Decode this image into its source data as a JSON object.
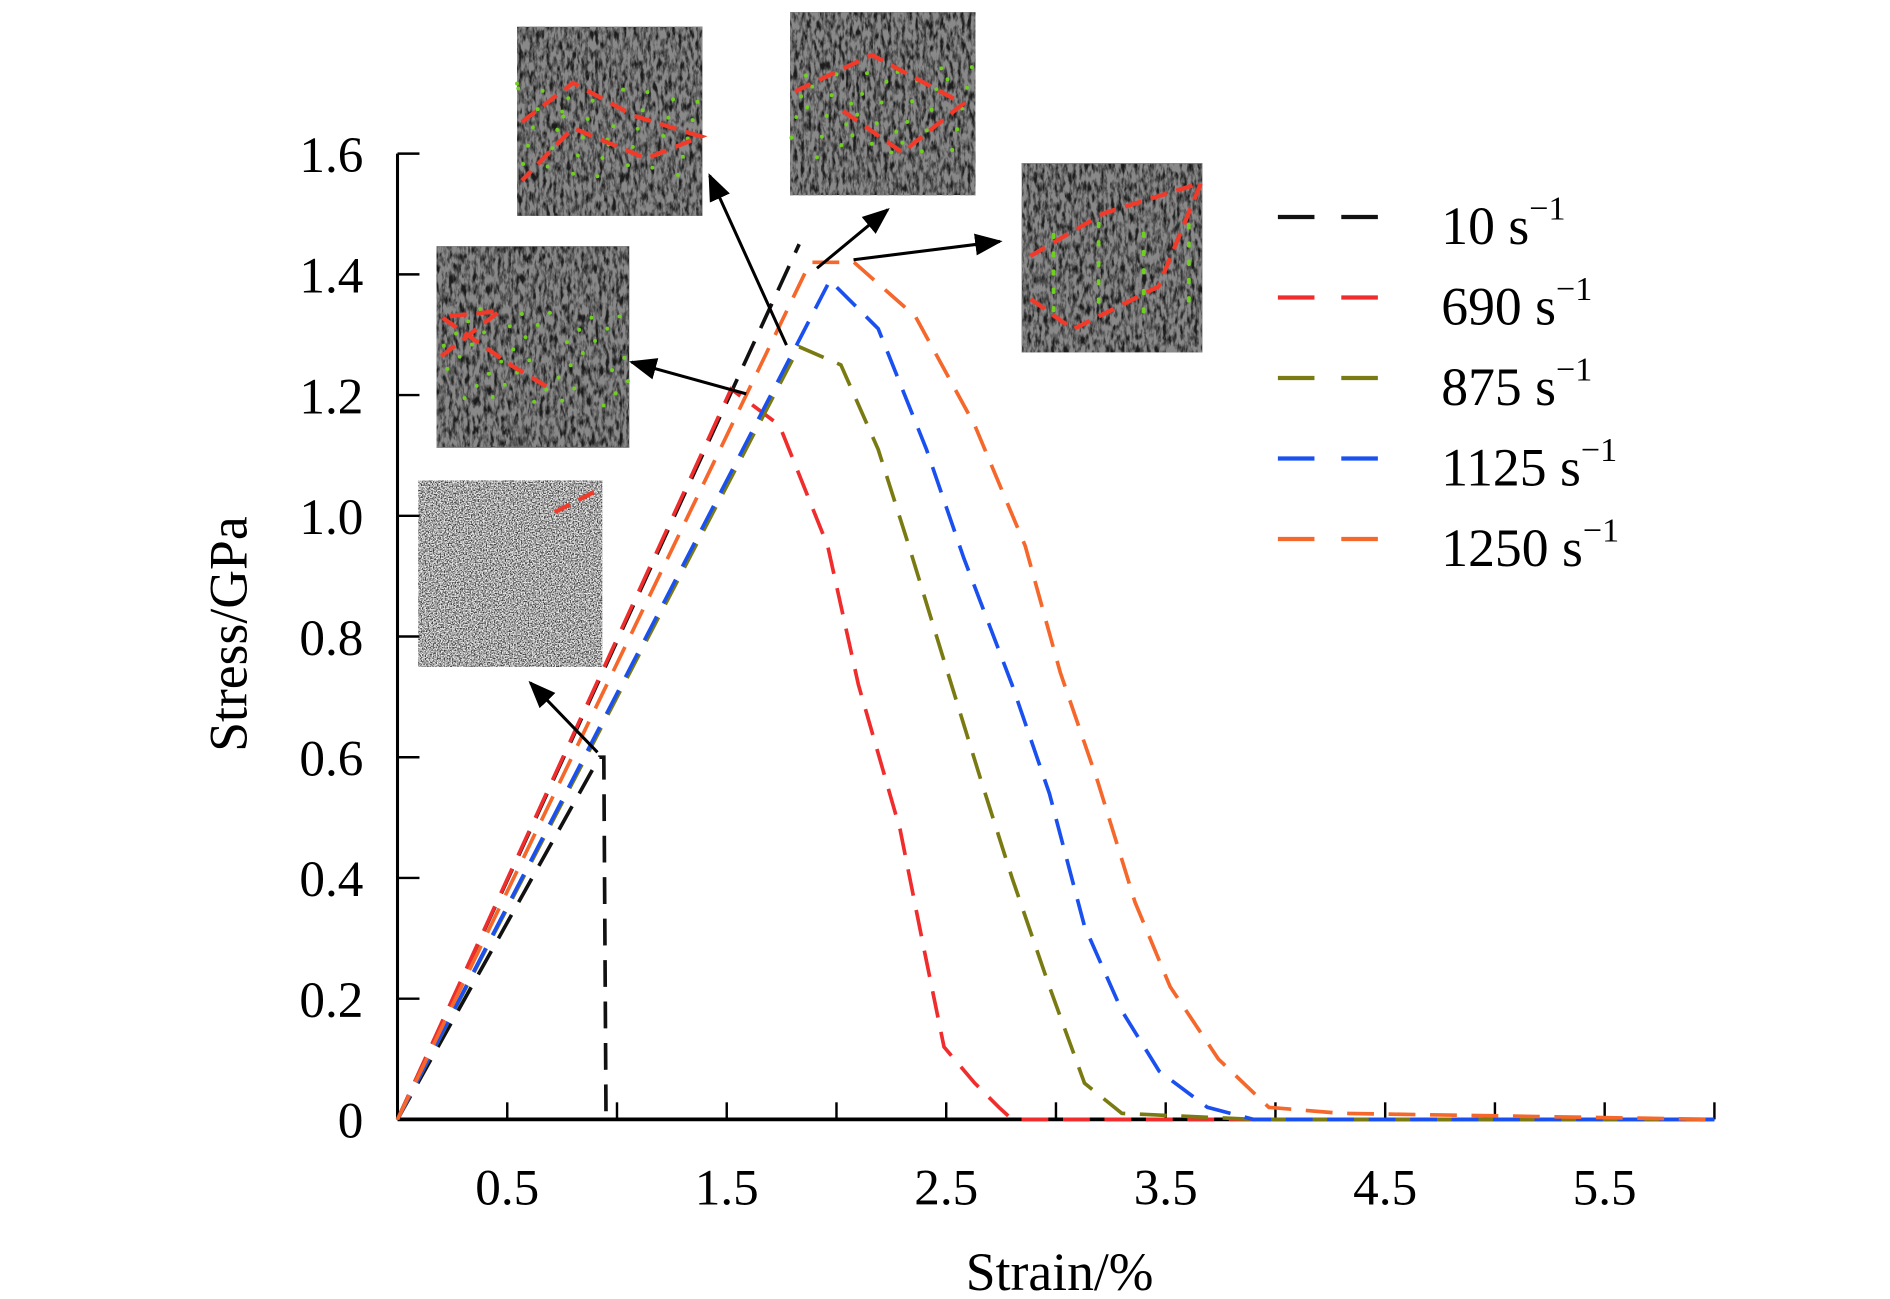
{
  "chart_data": {
    "type": "line",
    "xlabel": "Strain/%",
    "ylabel": "Stress/GPa",
    "xlim": [
      0,
      6
    ],
    "ylim": [
      0,
      1.6
    ],
    "xticks": [
      0.5,
      1.5,
      2.5,
      3.5,
      4.5,
      5.5
    ],
    "xtick_labels": [
      "0.5",
      "1.5",
      "2.5",
      "3.5",
      "4.5",
      "5.5"
    ],
    "yticks": [
      0,
      0.2,
      0.4,
      0.6,
      0.8,
      1.0,
      1.2,
      1.4,
      1.6
    ],
    "ytick_labels": [
      "0",
      "0.2",
      "0.4",
      "0.6",
      "0.8",
      "1.0",
      "1.2",
      "1.4",
      "1.6"
    ],
    "grid": false,
    "legend_position": "top-right",
    "series": [
      {
        "name": "10 s",
        "sup": "−1",
        "color": "#111111",
        "segments": [
          [
            [
              0,
              0
            ],
            [
              0.92,
              0.6
            ],
            [
              0.94,
              0.6
            ],
            [
              0.95,
              0
            ]
          ],
          [
            [
              0,
              0
            ],
            [
              1.83,
              1.45
            ]
          ]
        ]
      },
      {
        "name": "690 s",
        "sup": "−1",
        "color": "#f02c2c",
        "segments": [
          [
            [
              0,
              0
            ],
            [
              1.52,
              1.21
            ],
            [
              1.74,
              1.15
            ],
            [
              1.96,
              0.95
            ],
            [
              2.1,
              0.72
            ],
            [
              2.29,
              0.48
            ],
            [
              2.4,
              0.28
            ],
            [
              2.49,
              0.12
            ],
            [
              2.63,
              0.06
            ],
            [
              2.74,
              0.02
            ],
            [
              2.8,
              0
            ],
            [
              6,
              0
            ]
          ]
        ]
      },
      {
        "name": "875 s",
        "sup": "−1",
        "color": "#7a7a12",
        "segments": [
          [
            [
              0,
              0
            ],
            [
              1.83,
              1.28
            ],
            [
              2.02,
              1.25
            ],
            [
              2.19,
              1.11
            ],
            [
              2.33,
              0.95
            ],
            [
              2.49,
              0.76
            ],
            [
              2.66,
              0.56
            ],
            [
              2.8,
              0.4
            ],
            [
              2.97,
              0.22
            ],
            [
              3.13,
              0.06
            ],
            [
              3.3,
              0.01
            ],
            [
              3.9,
              0
            ],
            [
              6,
              0
            ]
          ]
        ]
      },
      {
        "name": "1125 s",
        "sup": "−1",
        "color": "#1a4ff0",
        "segments": [
          [
            [
              0,
              0
            ],
            [
              1.97,
              1.39
            ],
            [
              2.19,
              1.31
            ],
            [
              2.41,
              1.11
            ],
            [
              2.58,
              0.93
            ],
            [
              2.8,
              0.72
            ],
            [
              2.97,
              0.54
            ],
            [
              3.13,
              0.32
            ],
            [
              3.3,
              0.18
            ],
            [
              3.47,
              0.08
            ],
            [
              3.69,
              0.02
            ],
            [
              3.9,
              0
            ],
            [
              6,
              0
            ]
          ]
        ]
      },
      {
        "name": "1250 s",
        "sup": "−1",
        "color": "#f5672a",
        "segments": [
          [
            [
              0,
              0
            ],
            [
              1.88,
              1.42
            ],
            [
              2.08,
              1.42
            ],
            [
              2.36,
              1.33
            ],
            [
              2.63,
              1.15
            ],
            [
              2.86,
              0.95
            ],
            [
              3.02,
              0.74
            ],
            [
              3.19,
              0.56
            ],
            [
              3.36,
              0.36
            ],
            [
              3.52,
              0.22
            ],
            [
              3.74,
              0.1
            ],
            [
              3.97,
              0.02
            ],
            [
              4.3,
              0.01
            ],
            [
              6,
              0
            ]
          ]
        ]
      }
    ],
    "annotations": [
      {
        "type": "inset-image",
        "points_to": [
          0.92,
          0.6
        ]
      },
      {
        "type": "inset-image",
        "points_to": [
          1.6,
          1.2
        ]
      },
      {
        "type": "inset-image",
        "points_to": [
          1.77,
          1.28
        ]
      },
      {
        "type": "inset-image",
        "points_to": [
          1.9,
          1.42
        ]
      },
      {
        "type": "inset-image",
        "points_to": [
          2.08,
          1.42
        ]
      }
    ]
  }
}
